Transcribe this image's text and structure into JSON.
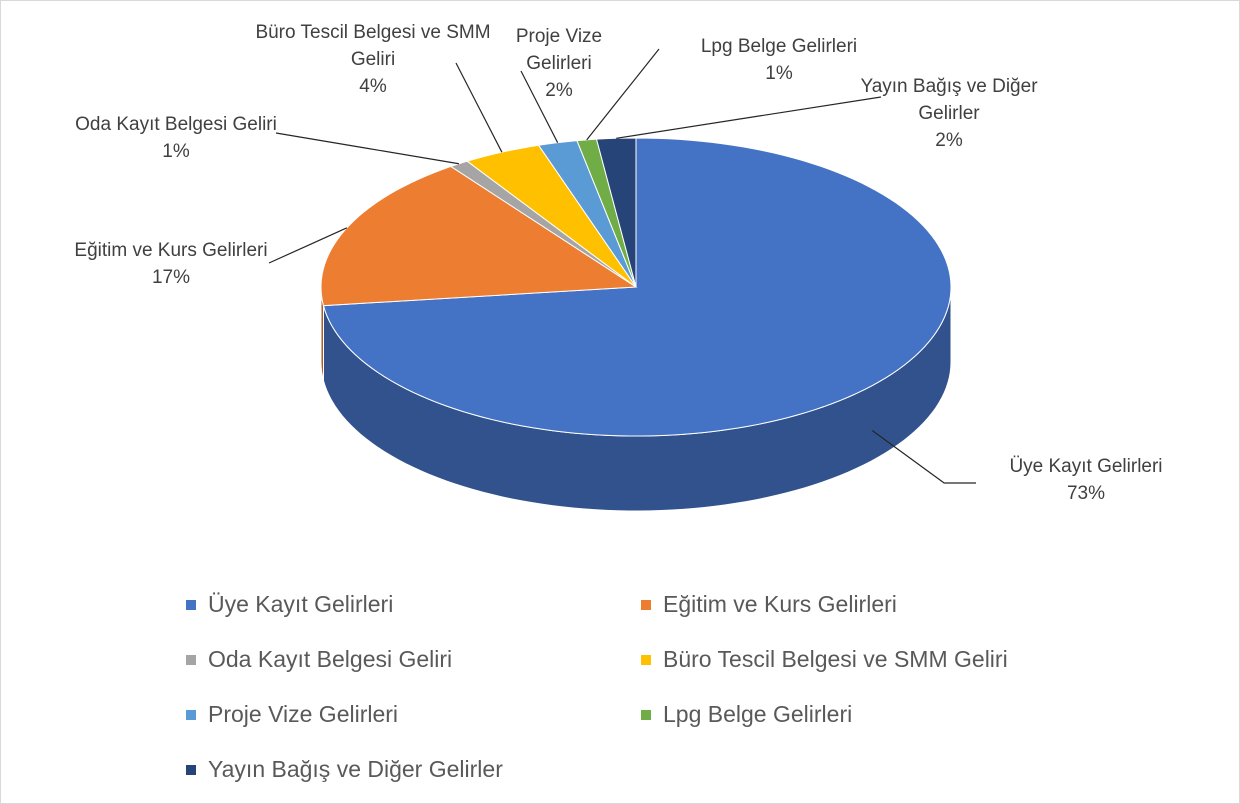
{
  "chart_data": {
    "type": "pie3d",
    "categories": [
      "Üye Kayıt Gelirleri",
      "Eğitim ve Kurs Gelirleri",
      "Oda Kayıt Belgesi Geliri",
      "Büro Tescil Belgesi ve SMM Geliri",
      "Proje Vize Gelirleri",
      "Lpg Belge Gelirleri",
      "Yayın Bağış ve Diğer Gelirler"
    ],
    "values": [
      73,
      17,
      1,
      4,
      2,
      1,
      2
    ],
    "value_labels": [
      "73%",
      "17%",
      "1%",
      "4%",
      "2%",
      "1%",
      "2%"
    ],
    "colors": [
      "#4472c4",
      "#ed7d31",
      "#a5a5a5",
      "#ffc000",
      "#5b9bd5",
      "#70ad47",
      "#264478"
    ],
    "legend": "bottom"
  }
}
